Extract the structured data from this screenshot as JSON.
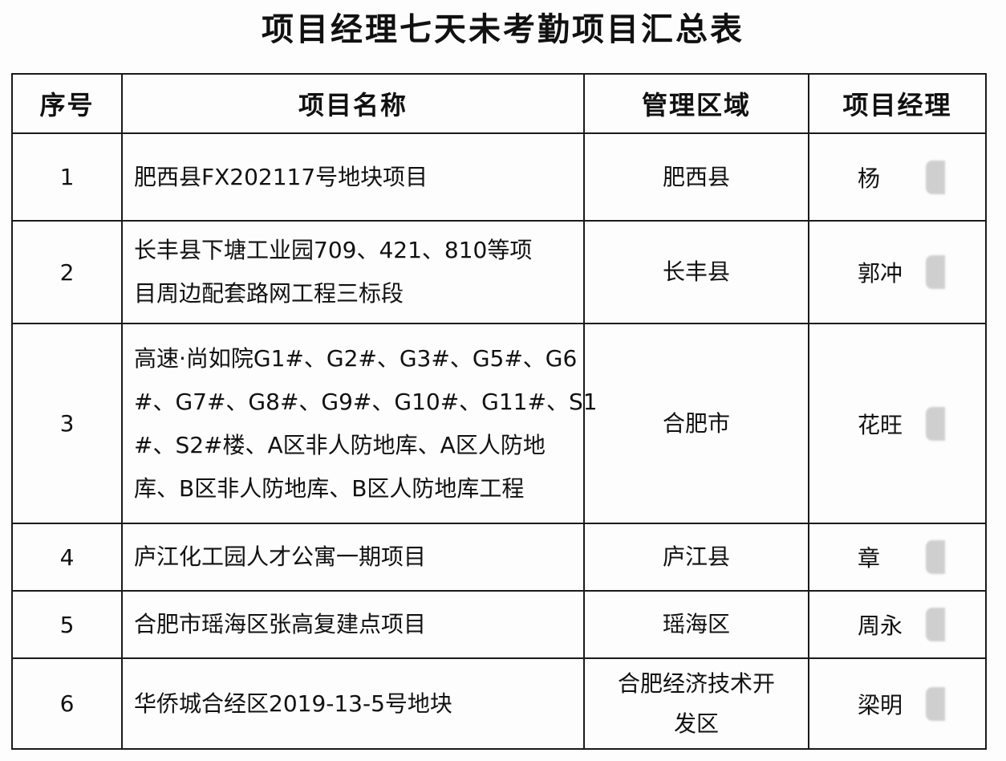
{
  "title": "项目经理七天未考勤项目汇总表",
  "headers": [
    "序号",
    "项目名称",
    "管理区域",
    "项目经理"
  ],
  "rows": [
    {
      "idx": "1",
      "name_lines": [
        "肥西县FX202117号地块项目"
      ],
      "area_lines": [
        "肥西县"
      ],
      "manager": "杨"
    },
    {
      "idx": "2",
      "name_lines": [
        "长丰县下塘工业园709、421、810等项",
        "目周边配套路网工程三标段"
      ],
      "area_lines": [
        "长丰县"
      ],
      "manager": "郭冲"
    },
    {
      "idx": "3",
      "name_lines": [
        "高速·尚如院G1#、G2#、G3#、G5#、G6",
        "#、G7#、G8#、G9#、G10#、G11#、S1",
        "#、S2#楼、A区非人防地库、A区人防地",
        "库、B区非人防地库、B区人防地库工程"
      ],
      "area_lines": [
        "合肥市"
      ],
      "manager": "花旺"
    },
    {
      "idx": "4",
      "name_lines": [
        "庐江化工园人才公寓一期项目"
      ],
      "area_lines": [
        "庐江县"
      ],
      "manager": "章"
    },
    {
      "idx": "5",
      "name_lines": [
        "合肥市瑶海区张高复建点项目"
      ],
      "area_lines": [
        "瑶海区"
      ],
      "manager": "周永"
    },
    {
      "idx": "6",
      "name_lines": [
        "华侨城合经区2019-13-5号地块"
      ],
      "area_lines": [
        "合肥经济技术开",
        "发区"
      ],
      "manager": "梁明"
    }
  ]
}
